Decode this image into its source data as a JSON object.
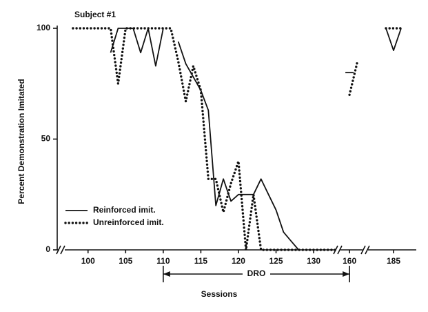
{
  "chart_data": {
    "type": "line",
    "title": "Subject #1",
    "x_label": "Sessions",
    "y_label": "Percent Demonstration Imitated",
    "x": [
      98,
      99,
      100,
      101,
      102,
      103,
      104,
      105,
      106,
      107,
      108,
      109,
      110,
      111,
      112,
      113,
      114,
      115,
      116,
      117,
      118,
      119,
      120,
      121,
      122,
      123,
      124,
      125,
      126,
      127,
      128,
      129,
      130,
      131,
      132,
      133,
      160,
      161,
      184,
      185,
      186
    ],
    "series": [
      {
        "name": "Reinforced imit.",
        "color": "#111111",
        "style": "solid",
        "values": [
          null,
          null,
          null,
          null,
          null,
          89,
          100,
          100,
          100,
          89,
          100,
          83,
          100,
          null,
          94,
          84,
          78,
          72,
          63,
          20,
          32,
          22,
          25,
          25,
          25,
          32,
          25,
          18,
          8,
          4,
          0,
          null,
          null,
          null,
          null,
          null,
          80,
          null,
          100,
          90,
          100
        ]
      },
      {
        "name": "Unreinforced imit.",
        "color": "#111111",
        "style": "dotted",
        "values": [
          100,
          100,
          100,
          100,
          100,
          100,
          75,
          100,
          100,
          100,
          100,
          100,
          100,
          100,
          85,
          67,
          83,
          72,
          32,
          32,
          17,
          30,
          40,
          0,
          25,
          0,
          0,
          0,
          0,
          0,
          0,
          0,
          0,
          0,
          0,
          0,
          70,
          85,
          100,
          100,
          100
        ]
      }
    ],
    "xlim": [
      [
        97,
        133.2
      ],
      [
        158.5,
        162
      ],
      [
        182,
        188
      ]
    ],
    "xticks": [
      100,
      105,
      110,
      115,
      120,
      125,
      130,
      160,
      185
    ],
    "ylim": [
      0,
      100
    ],
    "yticks": [
      0,
      50,
      100
    ],
    "annotations": [
      {
        "text": "DRO",
        "x": [
          110,
          160
        ]
      }
    ],
    "legend": "lower-left"
  }
}
